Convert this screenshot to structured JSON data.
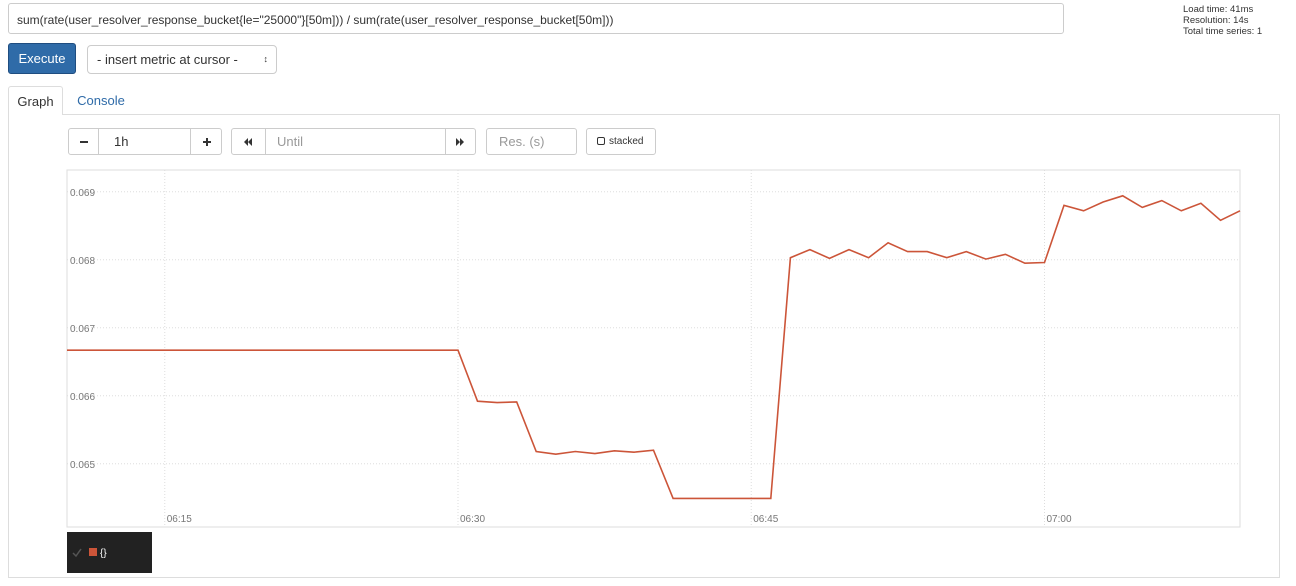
{
  "query": "sum(rate(user_resolver_response_bucket{le=\"25000\"}[50m])) / sum(rate(user_resolver_response_bucket[50m]))",
  "stats": [
    "Load time: 41ms",
    "Resolution: 14s",
    "Total time series: 1"
  ],
  "buttons": {
    "execute": "Execute",
    "metric_select": "- insert metric at cursor -"
  },
  "tabs": [
    "Graph",
    "Console"
  ],
  "controls": {
    "range": "1h",
    "until": "Until",
    "resolution": "Res. (s)",
    "stacked": "stacked"
  },
  "chart_data": {
    "type": "line",
    "x": [
      "06:10",
      "06:30",
      "06:31",
      "06:32",
      "06:33",
      "06:34",
      "06:35",
      "06:36",
      "06:37",
      "06:38",
      "06:39",
      "06:40",
      "06:41",
      "06:46",
      "06:47",
      "06:48",
      "06:49",
      "06:50",
      "06:51",
      "06:52",
      "06:53",
      "06:54",
      "06:55",
      "06:56",
      "06:57",
      "06:58",
      "06:59",
      "07:00",
      "07:01",
      "07:02",
      "07:03",
      "07:04",
      "07:05",
      "07:06",
      "07:07",
      "07:08",
      "07:09",
      "07:10"
    ],
    "series": [
      {
        "name": "{}",
        "color": "#cc5539",
        "values": [
          0.06667,
          0.06667,
          0.06592,
          0.0659,
          0.06591,
          0.06518,
          0.06514,
          0.06518,
          0.06515,
          0.06519,
          0.06517,
          0.0652,
          0.06449,
          0.06449,
          0.06803,
          0.06815,
          0.06802,
          0.06815,
          0.06803,
          0.06825,
          0.06812,
          0.06812,
          0.06803,
          0.06812,
          0.06801,
          0.06808,
          0.06795,
          0.06796,
          0.0688,
          0.06872,
          0.06885,
          0.06894,
          0.06877,
          0.06887,
          0.06872,
          0.06883,
          0.06858,
          0.06872
        ]
      }
    ],
    "xlim": [
      "06:10",
      "07:10"
    ],
    "xticks": [
      "06:15",
      "06:30",
      "06:45",
      "07:00"
    ],
    "ylim": [
      0.06407,
      0.06932
    ],
    "yticks": [
      0.065,
      0.066,
      0.067,
      0.068,
      0.069
    ],
    "grid": true
  }
}
